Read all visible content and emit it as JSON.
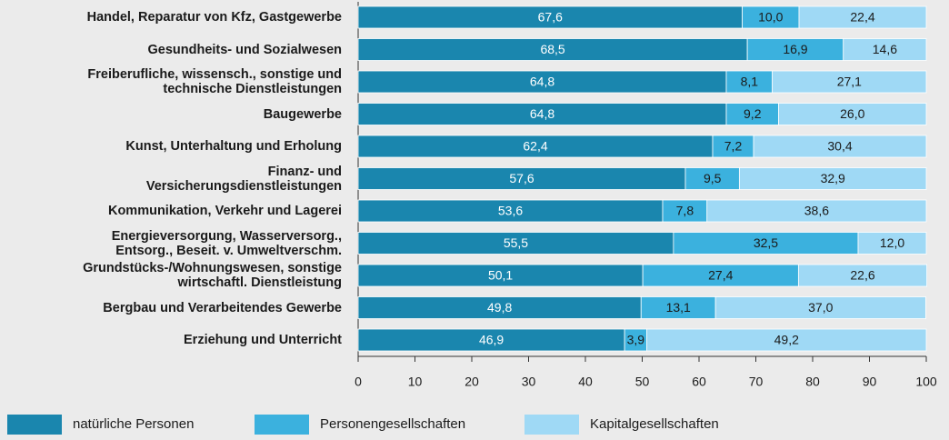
{
  "chart_data": {
    "type": "stacked-bar-horizontal",
    "categories": [
      "Handel, Reparatur von Kfz, Gastgewerbe",
      "Gesundheits- und Sozialwesen",
      "Freiberufliche, wissensch., sonstige und\ntechnische Dienstleistungen",
      "Baugewerbe",
      "Kunst, Unterhaltung und Erholung",
      "Finanz- und\nVersicherungsdienstleistungen",
      "Kommunikation, Verkehr und Lagerei",
      "Energieversorgung, Wasserversorg.,\nEntsorg., Beseit. v. Umweltverschm.",
      "Grundstücks-/Wohnungswesen, sonstige\nwirtschaftl. Dienstleistung",
      "Bergbau und Verarbeitendes Gewerbe",
      "Erziehung und Unterricht"
    ],
    "series": [
      {
        "name": "natürliche Personen",
        "color": "#1a86ae",
        "values": [
          67.6,
          68.5,
          64.8,
          64.8,
          62.4,
          57.6,
          53.6,
          55.5,
          50.1,
          49.8,
          46.9
        ],
        "value_labels": [
          "67,6",
          "68,5",
          "64,8",
          "64,8",
          "62,4",
          "57,6",
          "53,6",
          "55,5",
          "50,1",
          "49,8",
          "46,9"
        ]
      },
      {
        "name": "Personengesellschaften",
        "color": "#3bb1de",
        "values": [
          10.0,
          16.9,
          8.1,
          9.2,
          7.2,
          9.5,
          7.8,
          32.5,
          27.4,
          13.1,
          3.9
        ],
        "value_labels": [
          "10,0",
          "16,9",
          "8,1",
          "9,2",
          "7,2",
          "9,5",
          "7,8",
          "32,5",
          "27,4",
          "13,1",
          "3,9"
        ]
      },
      {
        "name": "Kapitalgesellschaften",
        "color": "#9fd9f5",
        "values": [
          22.4,
          14.6,
          27.1,
          26.0,
          30.4,
          32.9,
          38.6,
          12.0,
          22.6,
          37.0,
          49.2
        ],
        "value_labels": [
          "22,4",
          "14,6",
          "27,1",
          "26,0",
          "30,4",
          "32,9",
          "38,6",
          "12,0",
          "22,6",
          "37,0",
          "49,2"
        ]
      }
    ],
    "xlim": [
      0,
      100
    ],
    "xticks": [
      0,
      10,
      20,
      30,
      40,
      50,
      60,
      70,
      80,
      90,
      100
    ],
    "grid": false,
    "legend": "bottom"
  }
}
